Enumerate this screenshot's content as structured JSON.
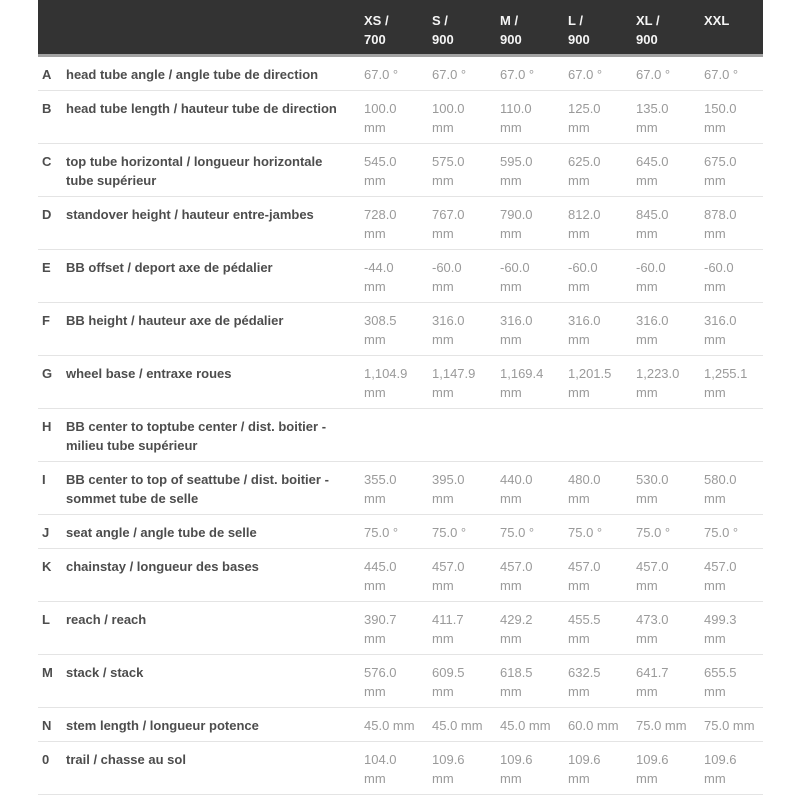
{
  "colors": {
    "header_bg": "#333333",
    "header_text": "#f5f5f5",
    "header_shadow": "#a2a2a2",
    "label_color": "#4d4d4d",
    "value_color": "#9a9a9a",
    "divider": "#e4e4e4",
    "page_bg": "#ffffff"
  },
  "header": {
    "columns": [
      {
        "line1": "XS /",
        "line2": "700"
      },
      {
        "line1": "S /",
        "line2": "900"
      },
      {
        "line1": "M /",
        "line2": "900"
      },
      {
        "line1": "L /",
        "line2": "900"
      },
      {
        "line1": "XL /",
        "line2": "900"
      },
      {
        "line1": "XXL",
        "line2": ""
      }
    ]
  },
  "rows": [
    {
      "letter": "A",
      "label": "head tube angle / angle tube de direction",
      "unit": "°",
      "inline_unit": true,
      "values": [
        "67.0",
        "67.0",
        "67.0",
        "67.0",
        "67.0",
        "67.0"
      ]
    },
    {
      "letter": "B",
      "label": "head tube length / hauteur tube de direction",
      "unit": "mm",
      "inline_unit": false,
      "values": [
        "100.0",
        "100.0",
        "110.0",
        "125.0",
        "135.0",
        "150.0"
      ]
    },
    {
      "letter": "C",
      "label": "top tube horizontal / longueur horizontale tube supérieur",
      "unit": "mm",
      "inline_unit": false,
      "values": [
        "545.0",
        "575.0",
        "595.0",
        "625.0",
        "645.0",
        "675.0"
      ]
    },
    {
      "letter": "D",
      "label": "standover height / hauteur entre-jambes",
      "unit": "mm",
      "inline_unit": false,
      "values": [
        "728.0",
        "767.0",
        "790.0",
        "812.0",
        "845.0",
        "878.0"
      ]
    },
    {
      "letter": "E",
      "label": "BB offset / deport axe de pédalier",
      "unit": "mm",
      "inline_unit": false,
      "values": [
        "-44.0",
        "-60.0",
        "-60.0",
        "-60.0",
        "-60.0",
        "-60.0"
      ]
    },
    {
      "letter": "F",
      "label": "BB height / hauteur axe de pédalier",
      "unit": "mm",
      "inline_unit": false,
      "values": [
        "308.5",
        "316.0",
        "316.0",
        "316.0",
        "316.0",
        "316.0"
      ]
    },
    {
      "letter": "G",
      "label": "wheel base / entraxe roues",
      "unit": "mm",
      "inline_unit": false,
      "values": [
        "1,104.9",
        "1,147.9",
        "1,169.4",
        "1,201.5",
        "1,223.0",
        "1,255.1"
      ]
    },
    {
      "letter": "H",
      "label": "BB center to toptube center / dist. boitier - milieu tube supérieur",
      "unit": "",
      "inline_unit": false,
      "values": [
        "",
        "",
        "",
        "",
        "",
        ""
      ]
    },
    {
      "letter": "I",
      "label": "BB center to top of seattube / dist. boitier - sommet tube de selle",
      "unit": "mm",
      "inline_unit": false,
      "values": [
        "355.0",
        "395.0",
        "440.0",
        "480.0",
        "530.0",
        "580.0"
      ]
    },
    {
      "letter": "J",
      "label": "seat angle / angle tube de selle",
      "unit": "°",
      "inline_unit": true,
      "values": [
        "75.0",
        "75.0",
        "75.0",
        "75.0",
        "75.0",
        "75.0"
      ]
    },
    {
      "letter": "K",
      "label": "chainstay / longueur des bases",
      "unit": "mm",
      "inline_unit": false,
      "values": [
        "445.0",
        "457.0",
        "457.0",
        "457.0",
        "457.0",
        "457.0"
      ]
    },
    {
      "letter": "L",
      "label": "reach / reach",
      "unit": "mm",
      "inline_unit": false,
      "values": [
        "390.7",
        "411.7",
        "429.2",
        "455.5",
        "473.0",
        "499.3"
      ]
    },
    {
      "letter": "M",
      "label": "stack / stack",
      "unit": "mm",
      "inline_unit": false,
      "values": [
        "576.0",
        "609.5",
        "618.5",
        "632.5",
        "641.7",
        "655.5"
      ]
    },
    {
      "letter": "N",
      "label": "stem length / longueur potence",
      "unit": "mm",
      "inline_unit": true,
      "values": [
        "45.0",
        "45.0",
        "45.0",
        "60.0",
        "75.0",
        "75.0"
      ]
    },
    {
      "letter": "0",
      "label": "trail / chasse au sol",
      "unit": "mm",
      "inline_unit": false,
      "values": [
        "104.0",
        "109.6",
        "109.6",
        "109.6",
        "109.6",
        "109.6"
      ]
    }
  ]
}
